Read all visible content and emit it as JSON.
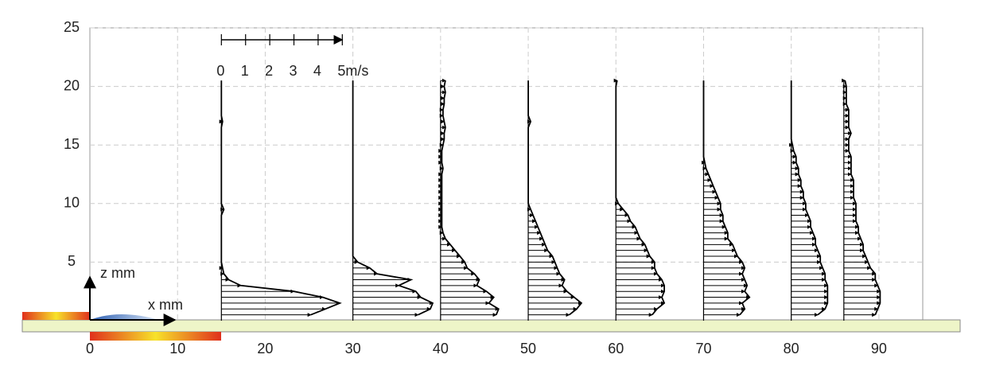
{
  "chart_data": {
    "type": "velocity-profiles",
    "x_label": "x mm",
    "y_label": "z mm",
    "xlim": [
      0,
      95
    ],
    "ylim": [
      0,
      25
    ],
    "xticks": [
      0,
      10,
      20,
      30,
      40,
      50,
      60,
      70,
      80,
      90
    ],
    "yticks": [
      5,
      10,
      15,
      20,
      25
    ],
    "grid": true,
    "color": "#000000",
    "speed_scale": [
      0,
      1,
      2,
      3,
      4,
      {
        "value": 5,
        "label": "5m/s"
      }
    ],
    "z": [
      0.5,
      1,
      1.5,
      2,
      2.5,
      3,
      3.5,
      4,
      4.5,
      5,
      5.5,
      6,
      6.5,
      7,
      7.5,
      8,
      8.5,
      9,
      9.5,
      10,
      10.5,
      11,
      11.5,
      12,
      12.5,
      13,
      13.5,
      14,
      14.5,
      15,
      15.5,
      16,
      16.5,
      17,
      17.5,
      18,
      18.5,
      19,
      19.5,
      20,
      20.5
    ],
    "profiles": [
      {
        "x": 15,
        "u": [
          3.7,
          4.3,
          4.9,
          4.2,
          3.0,
          0.8,
          0.3,
          0.1,
          0.05,
          0,
          0,
          0,
          0,
          0,
          0,
          0,
          0,
          0,
          0.1,
          0,
          0,
          0,
          0,
          0,
          0,
          0,
          0,
          0,
          0,
          0,
          0,
          0,
          0,
          0.05,
          0,
          0,
          0,
          0,
          0,
          0,
          0
        ]
      },
      {
        "x": 30,
        "u": [
          2.7,
          3.2,
          3.3,
          2.8,
          2.6,
          1.9,
          2.4,
          1.0,
          0.7,
          0.2,
          0,
          0,
          0,
          0,
          0,
          0,
          0,
          0,
          0,
          0,
          0,
          0,
          0,
          0,
          0,
          0,
          0,
          0,
          0,
          0,
          0,
          0,
          0,
          0,
          0,
          0,
          0,
          0,
          0,
          0,
          0
        ]
      },
      {
        "x": 40,
        "u": [
          2.3,
          2.4,
          2.0,
          2.2,
          1.9,
          1.5,
          1.6,
          1.4,
          1.1,
          1.0,
          0.8,
          0.6,
          0.4,
          0.2,
          0.1,
          0.05,
          0.05,
          0.05,
          0.05,
          0.05,
          0.05,
          0.05,
          0.05,
          0.05,
          0.05,
          0.1,
          0.05,
          0.05,
          0.05,
          0.1,
          0.15,
          0.15,
          0.2,
          0.15,
          0.1,
          0.1,
          0.15,
          0.15,
          0.2,
          0.15,
          0.2
        ]
      },
      {
        "x": 50,
        "u": [
          1.7,
          2.0,
          2.2,
          1.9,
          1.6,
          1.4,
          1.5,
          1.3,
          1.2,
          1.1,
          1.0,
          0.8,
          0.7,
          0.6,
          0.5,
          0.4,
          0.3,
          0.2,
          0.1,
          0,
          0,
          0,
          0,
          0,
          0,
          0,
          0,
          0,
          0,
          0,
          0,
          0,
          0,
          0.1,
          0,
          0,
          0,
          0,
          0,
          0,
          0
        ]
      },
      {
        "x": 60,
        "u": [
          1.5,
          1.7,
          2.0,
          1.9,
          2.0,
          2.0,
          1.9,
          1.7,
          1.6,
          1.6,
          1.4,
          1.3,
          1.2,
          1.0,
          0.9,
          0.8,
          0.6,
          0.5,
          0.3,
          0.1,
          0,
          0,
          0,
          0,
          0,
          0,
          0,
          0,
          0,
          0,
          0,
          0,
          0,
          0,
          0,
          0,
          0,
          0,
          0,
          0,
          0.05
        ]
      },
      {
        "x": 70,
        "u": [
          1.5,
          1.7,
          1.6,
          1.9,
          1.7,
          1.8,
          1.7,
          1.6,
          1.7,
          1.6,
          1.4,
          1.3,
          1.2,
          1.0,
          1.0,
          0.9,
          0.8,
          0.8,
          0.7,
          0.7,
          0.6,
          0.5,
          0.4,
          0.3,
          0.2,
          0.1,
          0.05,
          0,
          0,
          0,
          0,
          0,
          0,
          0,
          0,
          0,
          0,
          0,
          0,
          0,
          0
        ]
      },
      {
        "x": 80,
        "u": [
          1.1,
          1.4,
          1.5,
          1.5,
          1.5,
          1.5,
          1.4,
          1.4,
          1.3,
          1.2,
          1.2,
          1.1,
          1.0,
          1.0,
          0.9,
          0.8,
          0.8,
          0.7,
          0.6,
          0.6,
          0.5,
          0.5,
          0.4,
          0.4,
          0.3,
          0.3,
          0.2,
          0.2,
          0.1,
          0.05,
          0,
          0,
          0,
          0,
          0,
          0,
          0,
          0,
          0,
          0,
          0
        ]
      },
      {
        "x": 86,
        "u": [
          1.3,
          1.4,
          1.5,
          1.5,
          1.5,
          1.4,
          1.3,
          1.3,
          1.1,
          1.0,
          0.9,
          0.8,
          0.8,
          0.7,
          0.6,
          0.6,
          0.5,
          0.5,
          0.5,
          0.5,
          0.4,
          0.4,
          0.4,
          0.4,
          0.3,
          0.3,
          0.3,
          0.3,
          0.2,
          0.2,
          0.2,
          0.3,
          0.2,
          0.2,
          0.2,
          0.2,
          0.1,
          0.1,
          0.1,
          0.1,
          0.05
        ]
      }
    ]
  }
}
